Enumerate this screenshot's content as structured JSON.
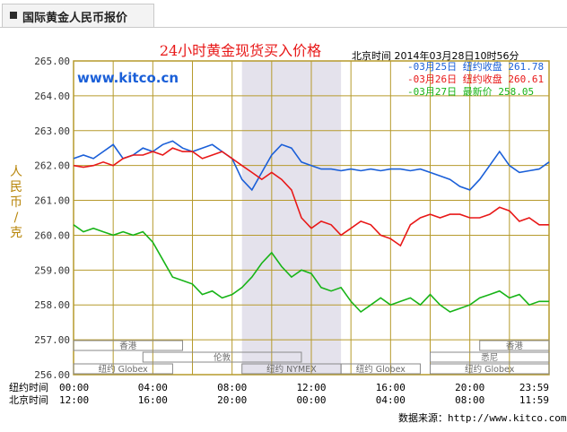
{
  "tab": {
    "label": "国际黄金人民币报价"
  },
  "footer": {
    "source_label": "数据来源：http://www.kitco.com"
  },
  "chart_data": {
    "type": "line",
    "title": "24小时黄金现货买入价格",
    "timestamp": "北京时间  2014年03月28日10时56分",
    "watermark": "www.kitco.cn",
    "ylabel": "人民币/克",
    "ylim": [
      256.0,
      265.0
    ],
    "yticks": [
      "265.00",
      "264.00",
      "263.00",
      "262.00",
      "261.00",
      "260.00",
      "259.00",
      "258.00",
      "257.00",
      "256.00"
    ],
    "x_rows": [
      {
        "label": "纽约时间",
        "ticks": [
          "00:00",
          "04:00",
          "08:00",
          "12:00",
          "16:00",
          "20:00",
          "23:59"
        ]
      },
      {
        "label": "北京时间",
        "ticks": [
          "12:00",
          "16:00",
          "20:00",
          "00:00",
          "04:00",
          "08:00",
          "11:59"
        ]
      }
    ],
    "grid": true,
    "shaded_range": [
      8.5,
      13.5
    ],
    "legend_position": "top-right",
    "legend": [
      {
        "date": "03月25日",
        "label": "纽约收盘",
        "value": "261.78",
        "color": "#1a5fd8"
      },
      {
        "date": "03月26日",
        "label": "纽约收盘",
        "value": "260.61",
        "color": "#e81818"
      },
      {
        "date": "03月27日",
        "label": "最新价",
        "value": "258.05",
        "color": "#18b418"
      }
    ],
    "sessions": [
      {
        "name": "香港",
        "row": 1,
        "start": 0,
        "end": 5.5
      },
      {
        "name": "香港",
        "row": 1,
        "start": 20.5,
        "end": 24
      },
      {
        "name": "伦敦",
        "row": 2,
        "start": 3.5,
        "end": 11.5
      },
      {
        "name": "悉尼",
        "row": 2,
        "start": 18,
        "end": 24
      },
      {
        "name": "纽约 Globex",
        "row": 3,
        "start": 0,
        "end": 5
      },
      {
        "name": "纽约 NYMEX",
        "row": 3,
        "start": 8.5,
        "end": 13.5
      },
      {
        "name": "纽约 Globex",
        "row": 3,
        "start": 13.5,
        "end": 17.5
      },
      {
        "name": "纽约 Globex",
        "row": 3,
        "start": 18,
        "end": 24
      }
    ],
    "x": [
      0,
      0.5,
      1,
      1.5,
      2,
      2.5,
      3,
      3.5,
      4,
      4.5,
      5,
      5.5,
      6,
      6.5,
      7,
      7.5,
      8,
      8.5,
      9,
      9.5,
      10,
      10.5,
      11,
      11.5,
      12,
      12.5,
      13,
      13.5,
      14,
      14.5,
      15,
      15.5,
      16,
      16.5,
      17,
      17.5,
      18,
      18.5,
      19,
      19.5,
      20,
      20.5,
      21,
      21.5,
      22,
      22.5,
      23,
      23.5,
      24
    ],
    "series": [
      {
        "name": "03月25日",
        "color": "#1a5fd8",
        "values": [
          262.2,
          262.3,
          262.2,
          262.4,
          262.6,
          262.2,
          262.3,
          262.5,
          262.4,
          262.6,
          262.7,
          262.5,
          262.4,
          262.5,
          262.6,
          262.4,
          262.2,
          261.6,
          261.3,
          261.8,
          262.3,
          262.6,
          262.5,
          262.1,
          262.0,
          261.9,
          261.9,
          261.85,
          261.9,
          261.85,
          261.9,
          261.85,
          261.9,
          261.9,
          261.85,
          261.9,
          261.8,
          261.7,
          261.6,
          261.4,
          261.3,
          261.6,
          262.0,
          262.4,
          262.0,
          261.8,
          261.85,
          261.9,
          262.1
        ]
      },
      {
        "name": "03月26日",
        "color": "#e81818",
        "values": [
          262.0,
          261.95,
          262.0,
          262.1,
          262.0,
          262.2,
          262.3,
          262.3,
          262.4,
          262.3,
          262.5,
          262.4,
          262.4,
          262.2,
          262.3,
          262.4,
          262.2,
          262.0,
          261.8,
          261.6,
          261.8,
          261.6,
          261.3,
          260.5,
          260.2,
          260.4,
          260.3,
          260.0,
          260.2,
          260.4,
          260.3,
          260.0,
          259.9,
          259.7,
          260.3,
          260.5,
          260.6,
          260.5,
          260.6,
          260.6,
          260.5,
          260.5,
          260.6,
          260.8,
          260.7,
          260.4,
          260.5,
          260.3,
          260.3
        ]
      },
      {
        "name": "03月27日",
        "color": "#18b418",
        "values": [
          260.3,
          260.1,
          260.2,
          260.1,
          260.0,
          260.1,
          260.0,
          260.1,
          259.8,
          259.3,
          258.8,
          258.7,
          258.6,
          258.3,
          258.4,
          258.2,
          258.3,
          258.5,
          258.8,
          259.2,
          259.5,
          259.1,
          258.8,
          259.0,
          258.9,
          258.5,
          258.4,
          258.5,
          258.1,
          257.8,
          258.0,
          258.2,
          258.0,
          258.1,
          258.2,
          258.0,
          258.3,
          258.0,
          257.8,
          257.9,
          258.0,
          258.2,
          258.3,
          258.4,
          258.2,
          258.3,
          258.0,
          258.1,
          258.1
        ]
      }
    ]
  }
}
